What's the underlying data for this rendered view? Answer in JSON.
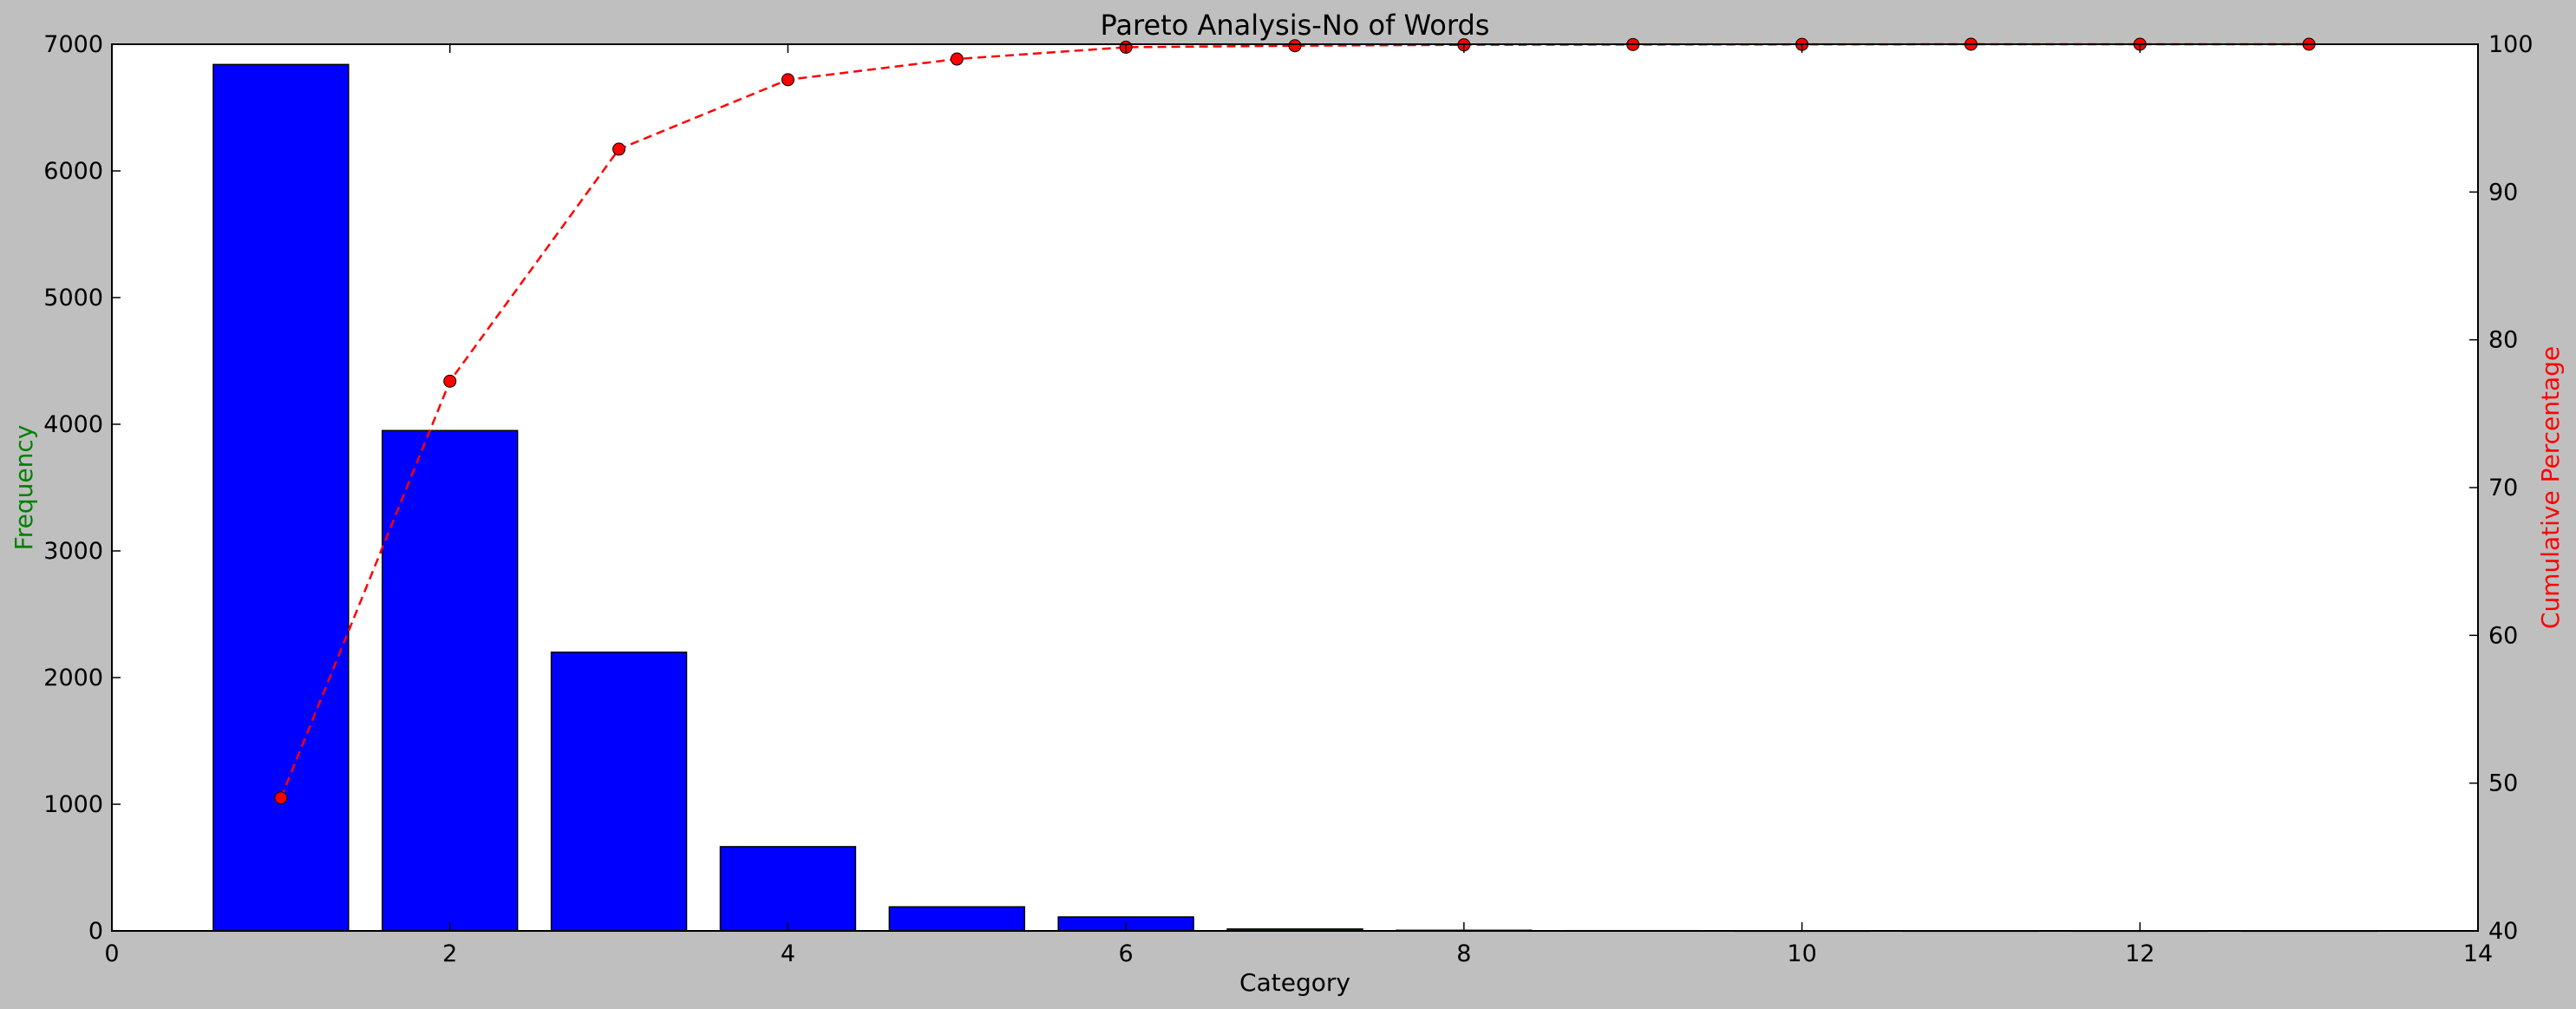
{
  "chart_data": {
    "type": "bar",
    "title": "Pareto Analysis-No of Words",
    "xlabel": "Category",
    "ylabel": "Frequency",
    "y2label": "Cumulative Percentage",
    "xlim": [
      0,
      14
    ],
    "ylim": [
      0,
      7000
    ],
    "y2lim": [
      40,
      100
    ],
    "xticks": [
      0,
      2,
      4,
      6,
      8,
      10,
      12,
      14
    ],
    "yticks": [
      0,
      1000,
      2000,
      3000,
      4000,
      5000,
      6000,
      7000
    ],
    "y2ticks": [
      40,
      50,
      60,
      70,
      80,
      90,
      100
    ],
    "grid": false,
    "series": [
      {
        "type": "bar",
        "color": "#0000ff",
        "x": [
          1,
          2,
          3,
          4,
          5,
          6,
          7,
          8,
          9,
          10,
          11,
          12,
          13
        ],
        "values": [
          6840,
          3950,
          2200,
          665,
          190,
          110,
          15,
          5,
          2,
          1,
          1,
          1,
          1
        ]
      },
      {
        "type": "line",
        "axis": "right",
        "color": "#ff0000",
        "linestyle": "dashed",
        "marker": "circle",
        "x": [
          1,
          2,
          3,
          4,
          5,
          6,
          7,
          8,
          9,
          10,
          11,
          12,
          13
        ],
        "values": [
          49.0,
          77.2,
          92.9,
          97.6,
          99.0,
          99.8,
          99.9,
          99.96,
          99.98,
          99.99,
          100,
          100,
          100
        ]
      }
    ]
  },
  "colors": {
    "frequency_label": "#008000",
    "cumulative_label": "#ff0000",
    "bar": "#0000ff",
    "line": "#ff0000"
  }
}
